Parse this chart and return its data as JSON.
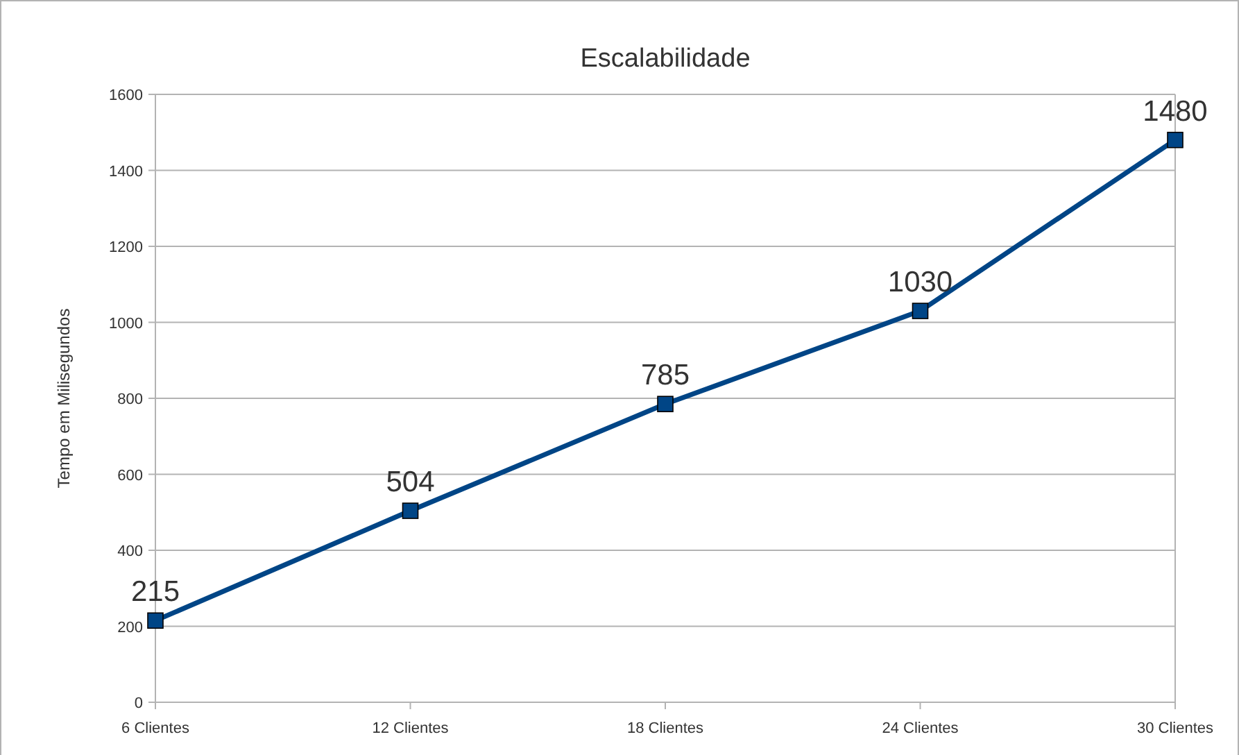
{
  "chart_data": {
    "type": "line",
    "title": "Escalabilidade",
    "ylabel": "Tempo em Milisegundos",
    "categories": [
      "6 Clientes",
      "12 Clientes",
      "18 Clientes",
      "24 Clientes",
      "30 Clientes"
    ],
    "series": [
      {
        "color": "#004586",
        "values": [
          215,
          504,
          785,
          1030,
          1480
        ]
      }
    ],
    "ylim": [
      0,
      1600
    ],
    "yticks": [
      0,
      200,
      400,
      600,
      800,
      1000,
      1200,
      1400,
      1600
    ],
    "grid": "y",
    "marker": "square",
    "line_style": "solid",
    "data_labels": true
  }
}
